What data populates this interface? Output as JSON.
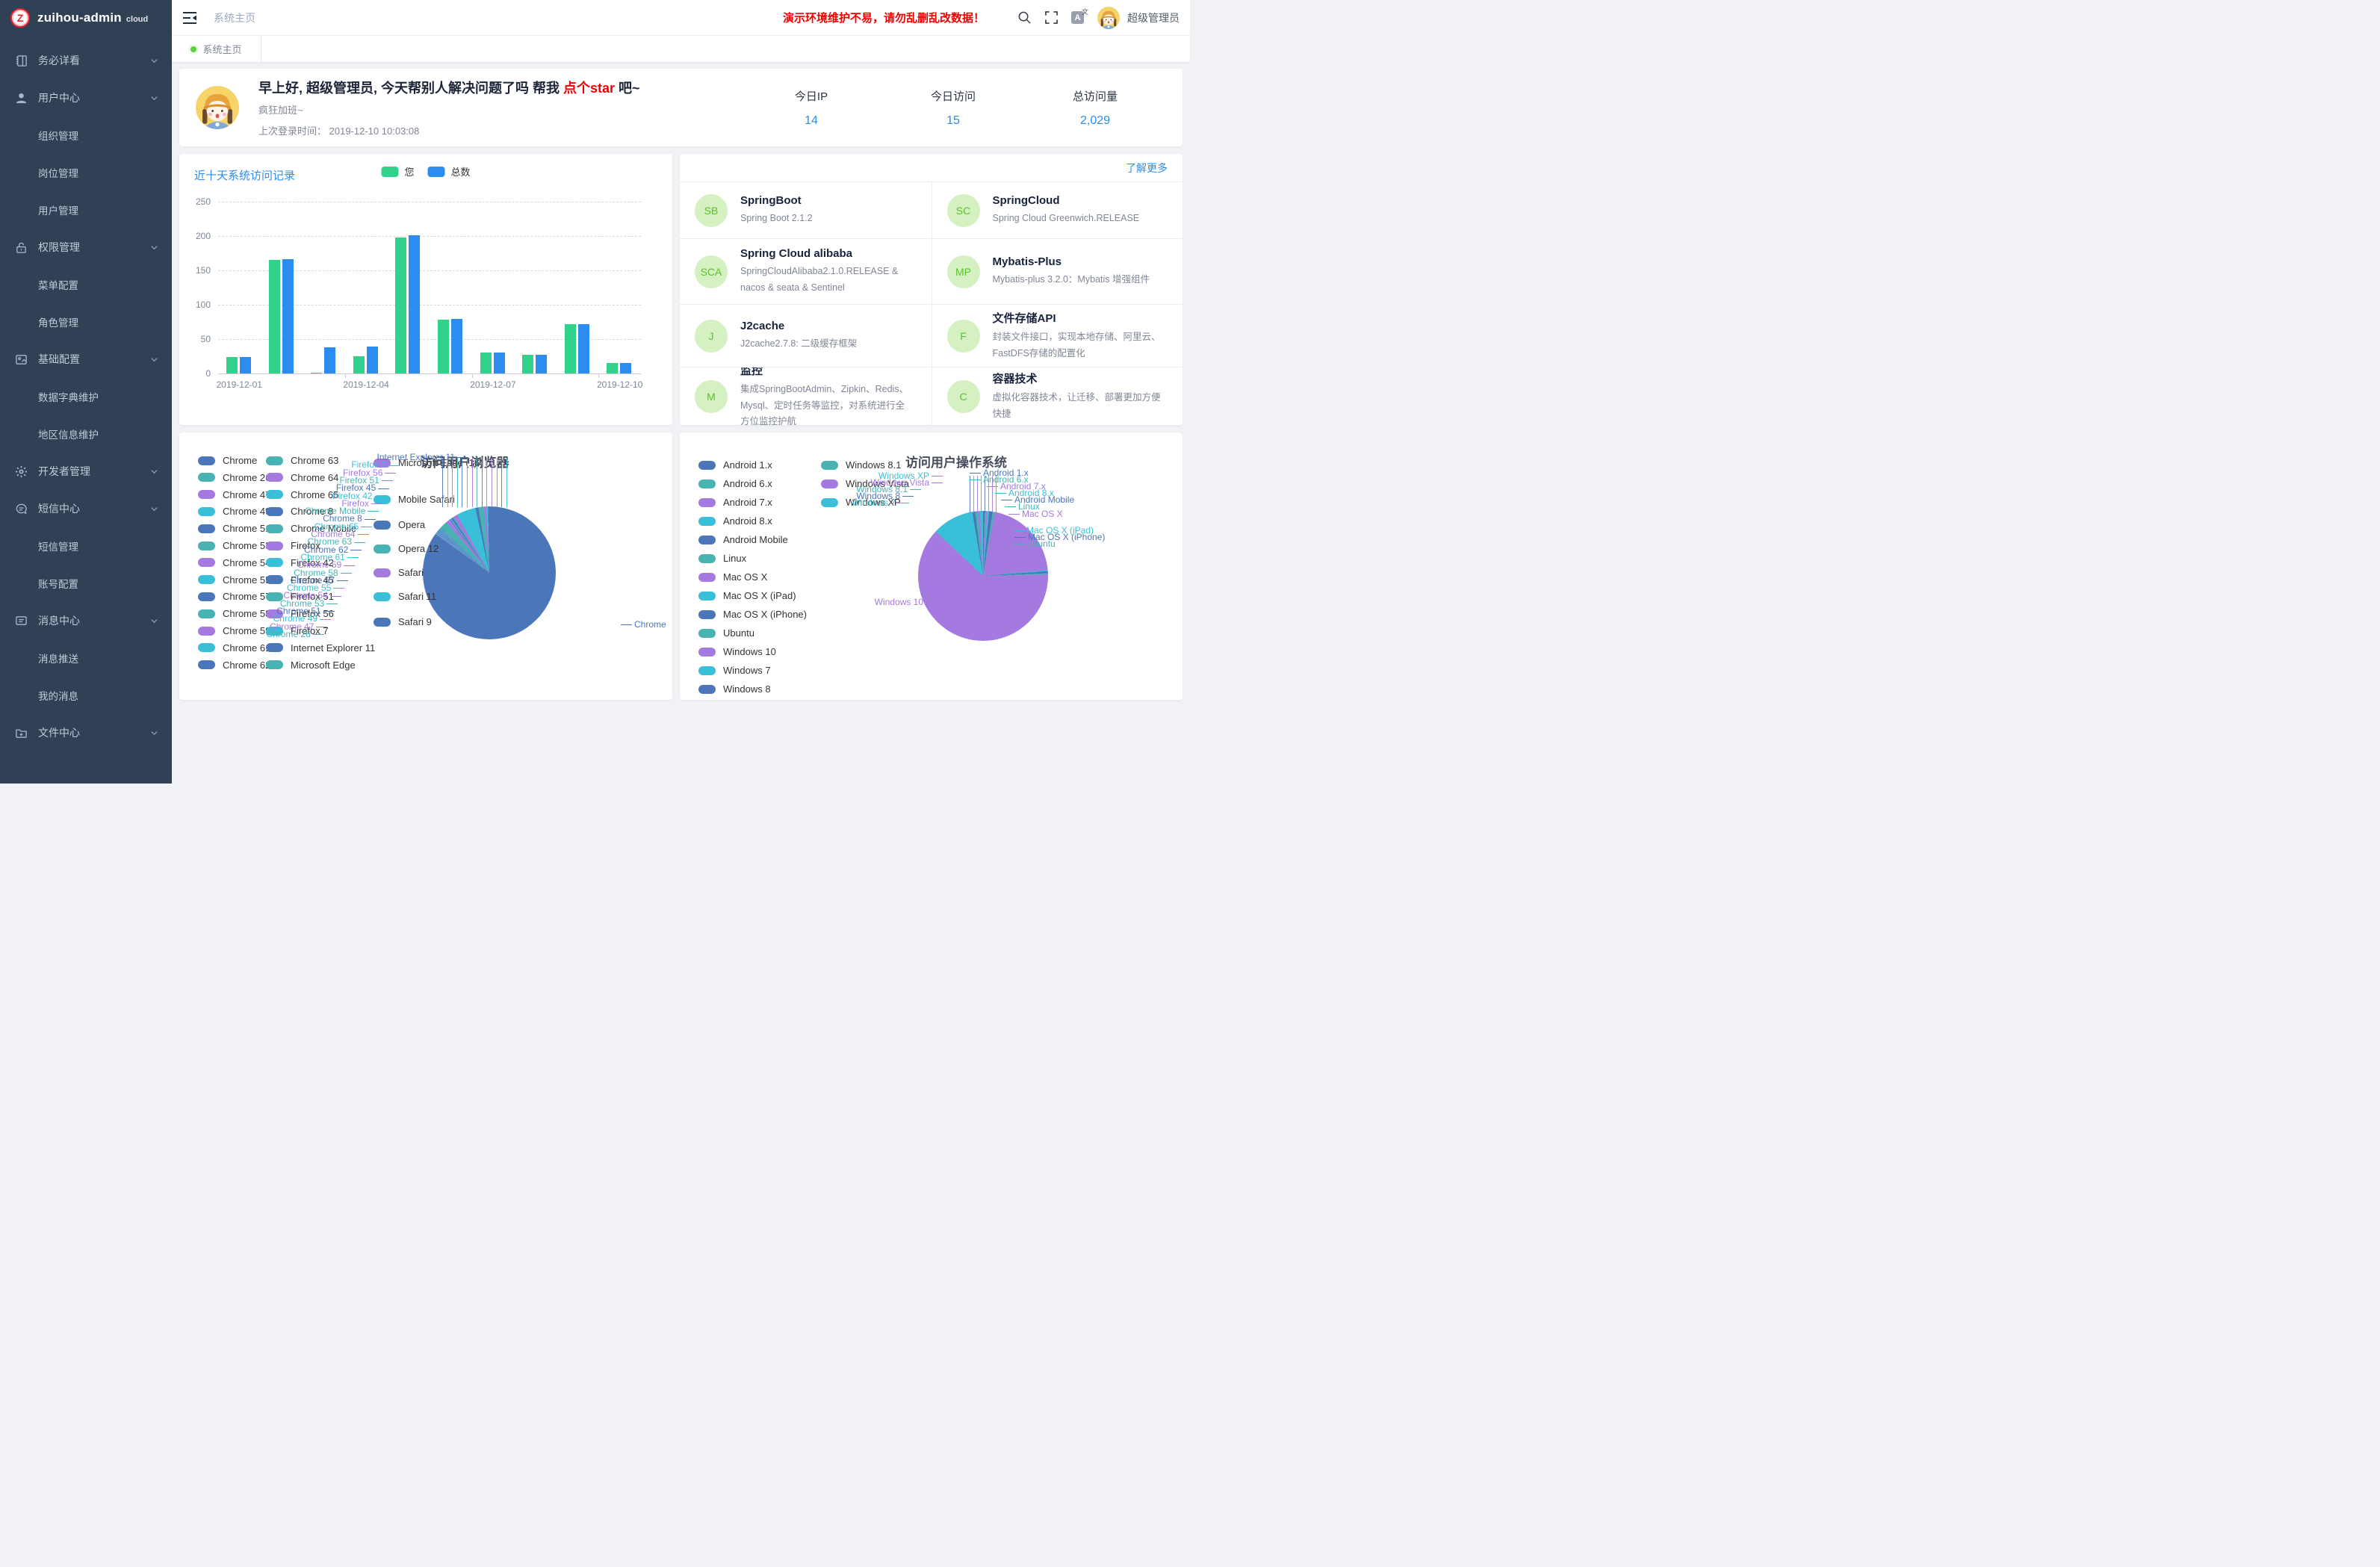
{
  "app": {
    "logo_letter": "Z",
    "logo_text": "zuihou-admin",
    "logo_badge": "cloud"
  },
  "header": {
    "breadcrumb": "系统主页",
    "warning": "演示环境维护不易，请勿乱删乱改数据！",
    "username": "超级管理员",
    "lang_icon_text": "A",
    "lang_icon_sup": "文"
  },
  "tabs": [
    {
      "label": "系统主页"
    }
  ],
  "sidebar": {
    "items": [
      {
        "icon": "notebook-icon",
        "label": "务必详看",
        "children": []
      },
      {
        "icon": "user-icon",
        "label": "用户中心",
        "children": [
          "组织管理",
          "岗位管理",
          "用户管理"
        ]
      },
      {
        "icon": "lock-icon",
        "label": "权限管理",
        "children": [
          "菜单配置",
          "角色管理"
        ]
      },
      {
        "icon": "image-icon",
        "label": "基础配置",
        "children": [
          "数据字典维护",
          "地区信息维护"
        ]
      },
      {
        "icon": "gear-icon",
        "label": "开发者管理",
        "children": []
      },
      {
        "icon": "chat-icon",
        "label": "短信中心",
        "children": [
          "短信管理",
          "账号配置"
        ]
      },
      {
        "icon": "message-icon",
        "label": "消息中心",
        "children": [
          "消息推送",
          "我的消息"
        ]
      },
      {
        "icon": "folder-plus-icon",
        "label": "文件中心",
        "children": []
      }
    ]
  },
  "welcome": {
    "greeting_prefix": "早上好, 超级管理员, 今天帮别人解决问题了吗 帮我 ",
    "greeting_link": "点个star",
    "greeting_suffix": " 吧~",
    "mood": "疯狂加班~",
    "last_login_label": "上次登录时间：",
    "last_login_value": "2019-12-10 10:03:08",
    "stats": [
      {
        "label": "今日IP",
        "value": "14"
      },
      {
        "label": "今日访问",
        "value": "15"
      },
      {
        "label": "总访问量",
        "value": "2,029"
      }
    ]
  },
  "tech": {
    "more_link": "了解更多",
    "cards": [
      {
        "abbr": "SB",
        "title": "SpringBoot",
        "desc": "Spring Boot 2.1.2"
      },
      {
        "abbr": "SC",
        "title": "SpringCloud",
        "desc": "Spring Cloud Greenwich.RELEASE"
      },
      {
        "abbr": "SCA",
        "title": "Spring Cloud alibaba",
        "desc": "SpringCloudAlibaba2.1.0.RELEASE & nacos & seata & Sentinel"
      },
      {
        "abbr": "MP",
        "title": "Mybatis-Plus",
        "desc": "Mybatis-plus 3.2.0：Mybatis 增强组件"
      },
      {
        "abbr": "J",
        "title": "J2cache",
        "desc": "J2cache2.7.8: 二级缓存框架"
      },
      {
        "abbr": "F",
        "title": "文件存储API",
        "desc": "封装文件接口，实现本地存储、阿里云、FastDFS存储的配置化"
      },
      {
        "abbr": "M",
        "title": "监控",
        "desc": "集成SpringBootAdmin、Zipkin、Redis、Mysql、定时任务等监控，对系统进行全方位监控护航"
      },
      {
        "abbr": "C",
        "title": "容器技术",
        "desc": "虚拟化容器技术，让迁移、部署更加方便快捷"
      }
    ]
  },
  "colors": {
    "palette": [
      "#4c76ba",
      "#49b3b3",
      "#a47ae0",
      "#3abfd8"
    ],
    "bar_you": "#31d38c",
    "bar_total": "#2d8cf0",
    "accent": "#2d8cf0",
    "warning_red": "#f20000",
    "tab_dot_green": "#5ad143",
    "tech_avatar_bg": "#d5f1c1",
    "tech_avatar_fg": "#57c22d"
  },
  "chart_data": [
    {
      "type": "bar",
      "title": "近十天系统访问记录",
      "categories": [
        "2019-12-01",
        "2019-12-02",
        "2019-12-03",
        "2019-12-04",
        "2019-12-05",
        "2019-12-06",
        "2019-12-07",
        "2019-12-08",
        "2019-12-09",
        "2019-12-10"
      ],
      "series": [
        {
          "name": "您",
          "values": [
            24,
            165,
            1,
            25,
            198,
            78,
            30,
            27,
            72,
            15
          ]
        },
        {
          "name": "总数",
          "values": [
            24,
            166,
            38,
            39,
            201,
            79,
            30,
            27,
            72,
            15
          ]
        }
      ],
      "ylim": [
        0,
        250
      ],
      "yticks": [
        0,
        50,
        100,
        150,
        200,
        250
      ],
      "x_tick_labels": [
        "2019-12-01",
        "2019-12-04",
        "2019-12-07",
        "2019-12-10"
      ],
      "grid": "dashed-horizontal",
      "legend_position": "top"
    },
    {
      "type": "pie",
      "title": "访问用户浏览器",
      "legend_columns": [
        13,
        13,
        7
      ],
      "items": [
        {
          "name": "Chrome",
          "value": 1724
        },
        {
          "name": "Chrome 26",
          "value": 2
        },
        {
          "name": "Chrome 47",
          "value": 3
        },
        {
          "name": "Chrome 49",
          "value": 2
        },
        {
          "name": "Chrome 51",
          "value": 2
        },
        {
          "name": "Chrome 53",
          "value": 2
        },
        {
          "name": "Chrome 54",
          "value": 2
        },
        {
          "name": "Chrome 55",
          "value": 2
        },
        {
          "name": "Chrome 57",
          "value": 3
        },
        {
          "name": "Chrome 58",
          "value": 2
        },
        {
          "name": "Chrome 59",
          "value": 2
        },
        {
          "name": "Chrome 61",
          "value": 2
        },
        {
          "name": "Chrome 62",
          "value": 3
        },
        {
          "name": "Chrome 63",
          "value": 3
        },
        {
          "name": "Chrome 64",
          "value": 3
        },
        {
          "name": "Chrome 65",
          "value": 3
        },
        {
          "name": "Chrome 8",
          "value": 2
        },
        {
          "name": "Chrome Mobile",
          "value": 40
        },
        {
          "name": "Firefox",
          "value": 18
        },
        {
          "name": "Firefox 42",
          "value": 2
        },
        {
          "name": "Firefox 45",
          "value": 3
        },
        {
          "name": "Firefox 51",
          "value": 2
        },
        {
          "name": "Firefox 56",
          "value": 3
        },
        {
          "name": "Firefox 7",
          "value": 2
        },
        {
          "name": "Internet Explorer 11",
          "value": 8
        },
        {
          "name": "Microsoft Edge",
          "value": 6
        },
        {
          "name": "Microsoft Edge (16)",
          "value": 20
        },
        {
          "name": "Mobile Safari",
          "value": 95
        },
        {
          "name": "Opera",
          "value": 14
        },
        {
          "name": "Opera 12",
          "value": 28
        },
        {
          "name": "Safari",
          "value": 12
        },
        {
          "name": "Safari 11",
          "value": 8
        },
        {
          "name": "Safari 9",
          "value": 6
        }
      ],
      "callouts_left": [
        "Internet Explorer 11",
        "Firefox 7",
        "Firefox 56",
        "Firefox 51",
        "Firefox 45",
        "Firefox 42",
        "Firefox",
        "Chrome Mobile",
        "Chrome 8",
        "Chrome 65",
        "Chrome 64",
        "Chrome 63",
        "Chrome 62",
        "Chrome 61",
        "Chrome 59",
        "Chrome 58",
        "Chrome 57",
        "Chrome 55",
        "Chrome 54",
        "Chrome 53",
        "Chrome 51",
        "Chrome 49",
        "Chrome 47",
        "Chrome 26"
      ],
      "callout_right": "Chrome"
    },
    {
      "type": "pie",
      "title": "访问用户操作系统",
      "legend_columns": [
        13,
        3
      ],
      "items": [
        {
          "name": "Android 1.x",
          "value": 8
        },
        {
          "name": "Android 6.x",
          "value": 8
        },
        {
          "name": "Android 7.x",
          "value": 6
        },
        {
          "name": "Android 8.x",
          "value": 8
        },
        {
          "name": "Android Mobile",
          "value": 18
        },
        {
          "name": "Linux",
          "value": 10
        },
        {
          "name": "Mac OS X",
          "value": 420
        },
        {
          "name": "Mac OS X (iPad)",
          "value": 6
        },
        {
          "name": "Mac OS X (iPhone)",
          "value": 10
        },
        {
          "name": "Ubuntu",
          "value": 6
        },
        {
          "name": "Windows 10",
          "value": 1265
        },
        {
          "name": "Windows 7",
          "value": 210
        },
        {
          "name": "Windows 8",
          "value": 14
        },
        {
          "name": "Windows 8.1",
          "value": 14
        },
        {
          "name": "Windows Vista",
          "value": 10
        },
        {
          "name": "Windows XP",
          "value": 16
        }
      ],
      "callouts_left": [
        "Windows XP",
        "Windows Vista",
        "Windows 8.1",
        "Windows 8",
        "Windows 7",
        "Windows 10"
      ],
      "callouts_right": [
        "Android 1.x",
        "Android 6.x",
        "Android 7.x",
        "Android 8.x",
        "Android Mobile",
        "Linux",
        "Mac OS X",
        "Mac OS X (iPad)",
        "Mac OS X (iPhone)",
        "Ubuntu"
      ]
    }
  ]
}
